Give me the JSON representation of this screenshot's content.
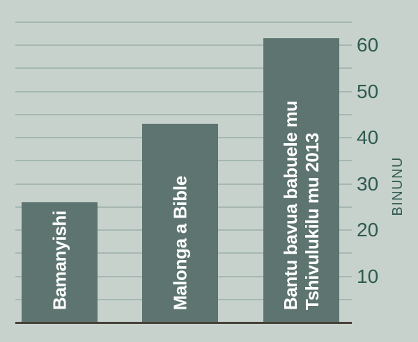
{
  "chart_data": {
    "type": "bar",
    "title": "",
    "categories": [
      "Bamanyishi",
      "Malonga a Bible",
      "Bantu bavua babuele mu\nTshivulukilu mu 2013"
    ],
    "values": [
      26,
      43,
      61.5
    ],
    "xlabel": "",
    "ylabel": "BINUNU",
    "ylim": [
      0,
      65
    ],
    "gridline_step": 5,
    "ytick_values": [
      10,
      20,
      30,
      40,
      50,
      60
    ],
    "ytick_labels": [
      "10",
      "20",
      "30",
      "40",
      "50",
      "60"
    ],
    "grid": true,
    "legend": "none",
    "bar_label_position": "inside-vertical-bottom",
    "axis_side": "right"
  },
  "colors": {
    "background": "#c7d2cd",
    "bar": "#5d7470",
    "gridline": "#a6b7b1",
    "baseline": "#48413a",
    "axis_text": "#2e5a4f",
    "bar_label": "#ffffff"
  }
}
